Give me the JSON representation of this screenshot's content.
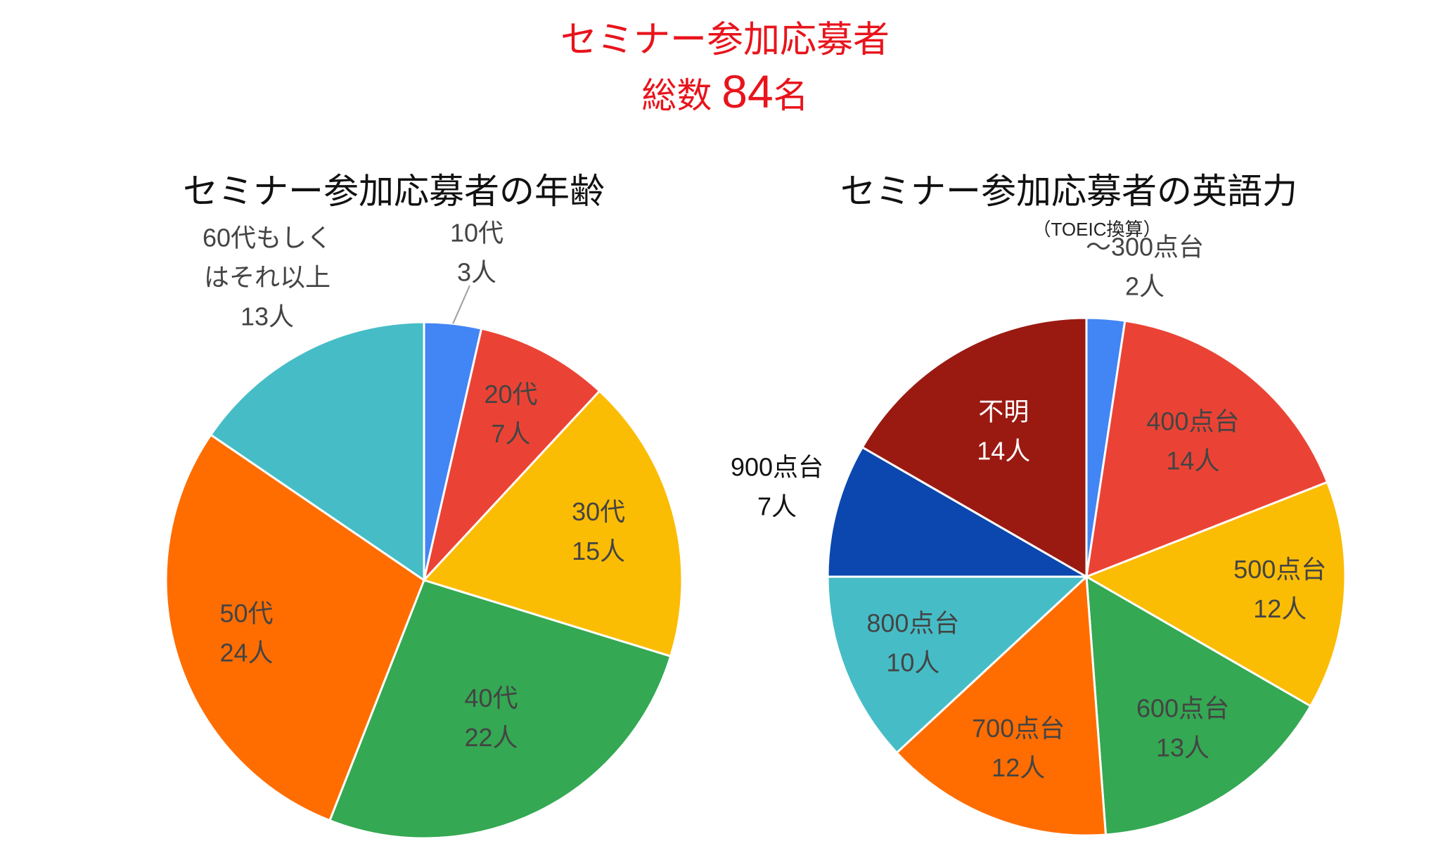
{
  "headline": {
    "title": "セミナー参加応募者",
    "total_prefix": "総数",
    "total_value": "84",
    "total_suffix": "名",
    "color": "#e8141c"
  },
  "chart_data": [
    {
      "type": "pie",
      "title": "セミナー参加応募者の年齢",
      "start_angle_deg": 0,
      "direction": "clockwise",
      "slices": [
        {
          "label": "10代",
          "value": 3,
          "value_label": "3人",
          "color": "#4285f4",
          "text_color": "#444444"
        },
        {
          "label": "20代",
          "value": 7,
          "value_label": "7人",
          "color": "#ea4335",
          "text_color": "#444444"
        },
        {
          "label": "30代",
          "value": 15,
          "value_label": "15人",
          "color": "#fbbc04",
          "text_color": "#444444"
        },
        {
          "label": "40代",
          "value": 22,
          "value_label": "22人",
          "color": "#34a853",
          "text_color": "#444444"
        },
        {
          "label": "50代",
          "value": 24,
          "value_label": "24人",
          "color": "#ff6d01",
          "text_color": "#444444"
        },
        {
          "label": "60代もしく",
          "label2": "はそれ以上",
          "value": 13,
          "value_label": "13人",
          "color": "#46bdc6",
          "text_color": "#444444"
        }
      ]
    },
    {
      "type": "pie",
      "title": "セミナー参加応募者の英語力",
      "subtitle": "（TOEIC換算）",
      "start_angle_deg": 0,
      "direction": "clockwise",
      "slices": [
        {
          "label": "～300点台",
          "value": 2,
          "value_label": "2人",
          "color": "#4285f4",
          "text_color": "#444444"
        },
        {
          "label": "400点台",
          "value": 14,
          "value_label": "14人",
          "color": "#ea4335",
          "text_color": "#444444"
        },
        {
          "label": "500点台",
          "value": 12,
          "value_label": "12人",
          "color": "#fbbc04",
          "text_color": "#444444"
        },
        {
          "label": "600点台",
          "value": 13,
          "value_label": "13人",
          "color": "#34a853",
          "text_color": "#444444"
        },
        {
          "label": "700点台",
          "value": 12,
          "value_label": "12人",
          "color": "#ff6d01",
          "text_color": "#444444"
        },
        {
          "label": "800点台",
          "value": 10,
          "value_label": "10人",
          "color": "#46bdc6",
          "text_color": "#444444"
        },
        {
          "label": "900点台",
          "value": 7,
          "value_label": "7人",
          "color": "#0b47ae",
          "text_color": "#111111"
        },
        {
          "label": "不明",
          "value": 14,
          "value_label": "14人",
          "color": "#9a1a12",
          "text_color": "#ffffff"
        }
      ]
    }
  ]
}
